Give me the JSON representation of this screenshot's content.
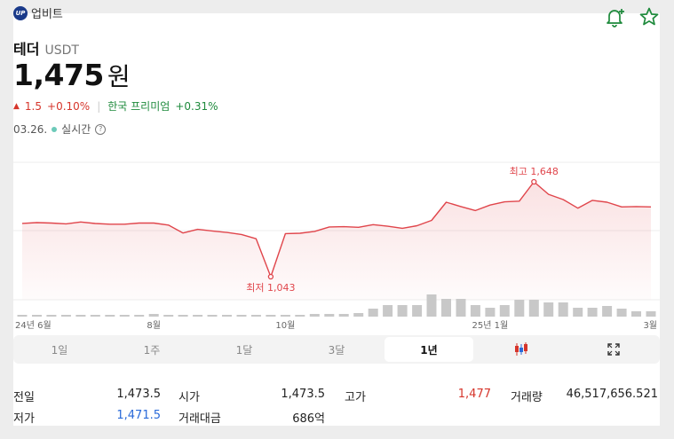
{
  "header": {
    "source_name": "업비트",
    "source_logo_text": "UP",
    "coin_name": "테더",
    "coin_ticker": "USDT",
    "price": "1,475",
    "price_unit": "원",
    "change_abs": "1.5",
    "change_pct": "+0.10%",
    "premium_label": "한국 프리미엄",
    "premium_value": "+0.31%",
    "date": "03.26.",
    "live_label": "실시간",
    "help_glyph": "?"
  },
  "icons": [
    "bell-plus-icon",
    "star-icon",
    "candlestick-icon",
    "expand-icon",
    "help-icon"
  ],
  "colors": {
    "up": "#d6352b",
    "down": "#2a6ad9",
    "premium": "#1e8a3c",
    "line": "#e0454b",
    "volume": "#c8c8c8"
  },
  "chart_data": {
    "type": "line",
    "title": "",
    "xlabel": "",
    "ylabel": "",
    "x_tick_labels": [
      "24년 6월",
      "8월",
      "10월",
      "25년 1월",
      "3월"
    ],
    "series": [
      {
        "values": [
          1383,
          1388,
          1385,
          1380,
          1392,
          1382,
          1378,
          1378,
          1385,
          1385,
          1372,
          1322,
          1345,
          1335,
          1325,
          1312,
          1285,
          1043,
          1318,
          1320,
          1332,
          1360,
          1362,
          1358,
          1375,
          1365,
          1352,
          1368,
          1402,
          1518,
          1490,
          1465,
          1500,
          1520,
          1525,
          1648,
          1568,
          1535,
          1480,
          1530,
          1518,
          1488,
          1490,
          1488
        ]
      }
    ],
    "volume_values": [
      2,
      2,
      2,
      2,
      2,
      2,
      2,
      2,
      2,
      3,
      2,
      2,
      2,
      2,
      2,
      2,
      2,
      2,
      2,
      2,
      3,
      3,
      3,
      4,
      9,
      13,
      13,
      13,
      25,
      20,
      20,
      13,
      10,
      13,
      19,
      19,
      16,
      16,
      10,
      10,
      12,
      9,
      6,
      6
    ],
    "annotations": [
      {
        "label": "최고 1,648",
        "type": "max"
      },
      {
        "label": "최저 1,043",
        "type": "min"
      }
    ],
    "ylim": [
      1000,
      1700
    ],
    "grid": true
  },
  "tabs": [
    {
      "label": "1일",
      "active": false
    },
    {
      "label": "1주",
      "active": false
    },
    {
      "label": "1달",
      "active": false
    },
    {
      "label": "3달",
      "active": false
    },
    {
      "label": "1년",
      "active": true
    }
  ],
  "stats": {
    "prev_close_label": "전일",
    "prev_close": "1,473.5",
    "open_label": "시가",
    "open": "1,473.5",
    "high_label": "고가",
    "high": "1,477",
    "volume_label": "거래량",
    "volume": "46,517,656.521",
    "low_label": "저가",
    "low": "1,471.5",
    "trade_value_label": "거래대금",
    "trade_value": "686억"
  }
}
